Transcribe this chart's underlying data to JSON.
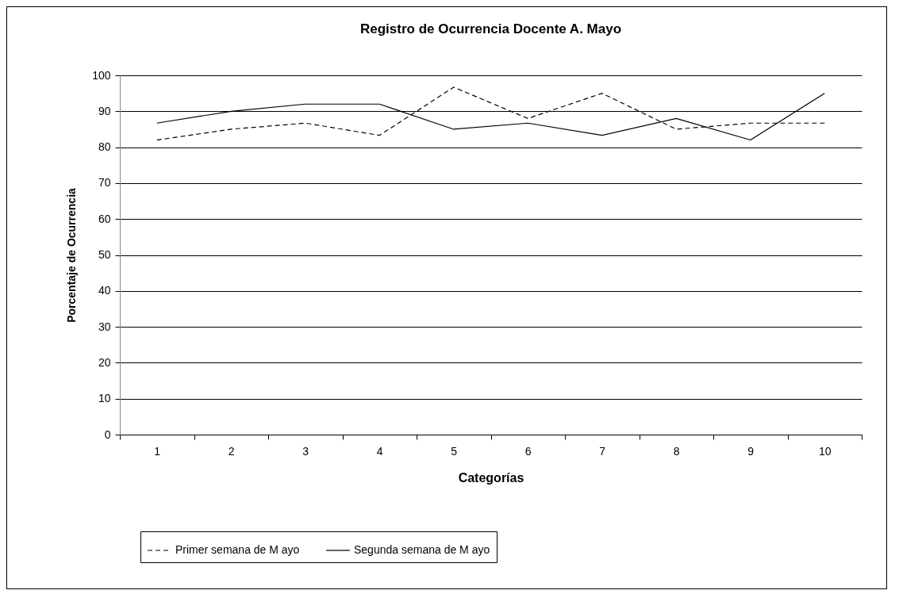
{
  "chart_data": {
    "type": "line",
    "title": "Registro de Ocurrencia Docente A. Mayo",
    "xlabel": "Categorías",
    "ylabel": "Porcentaje de Ocurrencia",
    "categories": [
      "1",
      "2",
      "3",
      "4",
      "5",
      "6",
      "7",
      "8",
      "9",
      "10"
    ],
    "series": [
      {
        "name": "Primer semana de M ayo",
        "color": "#000000",
        "line_style": "dashed",
        "values": [
          82,
          85,
          86.7,
          83.3,
          96.7,
          88,
          95,
          85,
          86.7,
          86.7
        ]
      },
      {
        "name": "Segunda semana de M ayo",
        "color": "#000000",
        "line_style": "solid",
        "values": [
          86.7,
          90,
          92,
          92,
          85,
          86.7,
          83.3,
          88,
          82,
          95
        ]
      }
    ],
    "ylim": [
      0,
      100
    ],
    "yticks": [
      0,
      10,
      20,
      30,
      40,
      50,
      60,
      70,
      80,
      90,
      100
    ],
    "grid": "y",
    "legend": "bottom"
  }
}
